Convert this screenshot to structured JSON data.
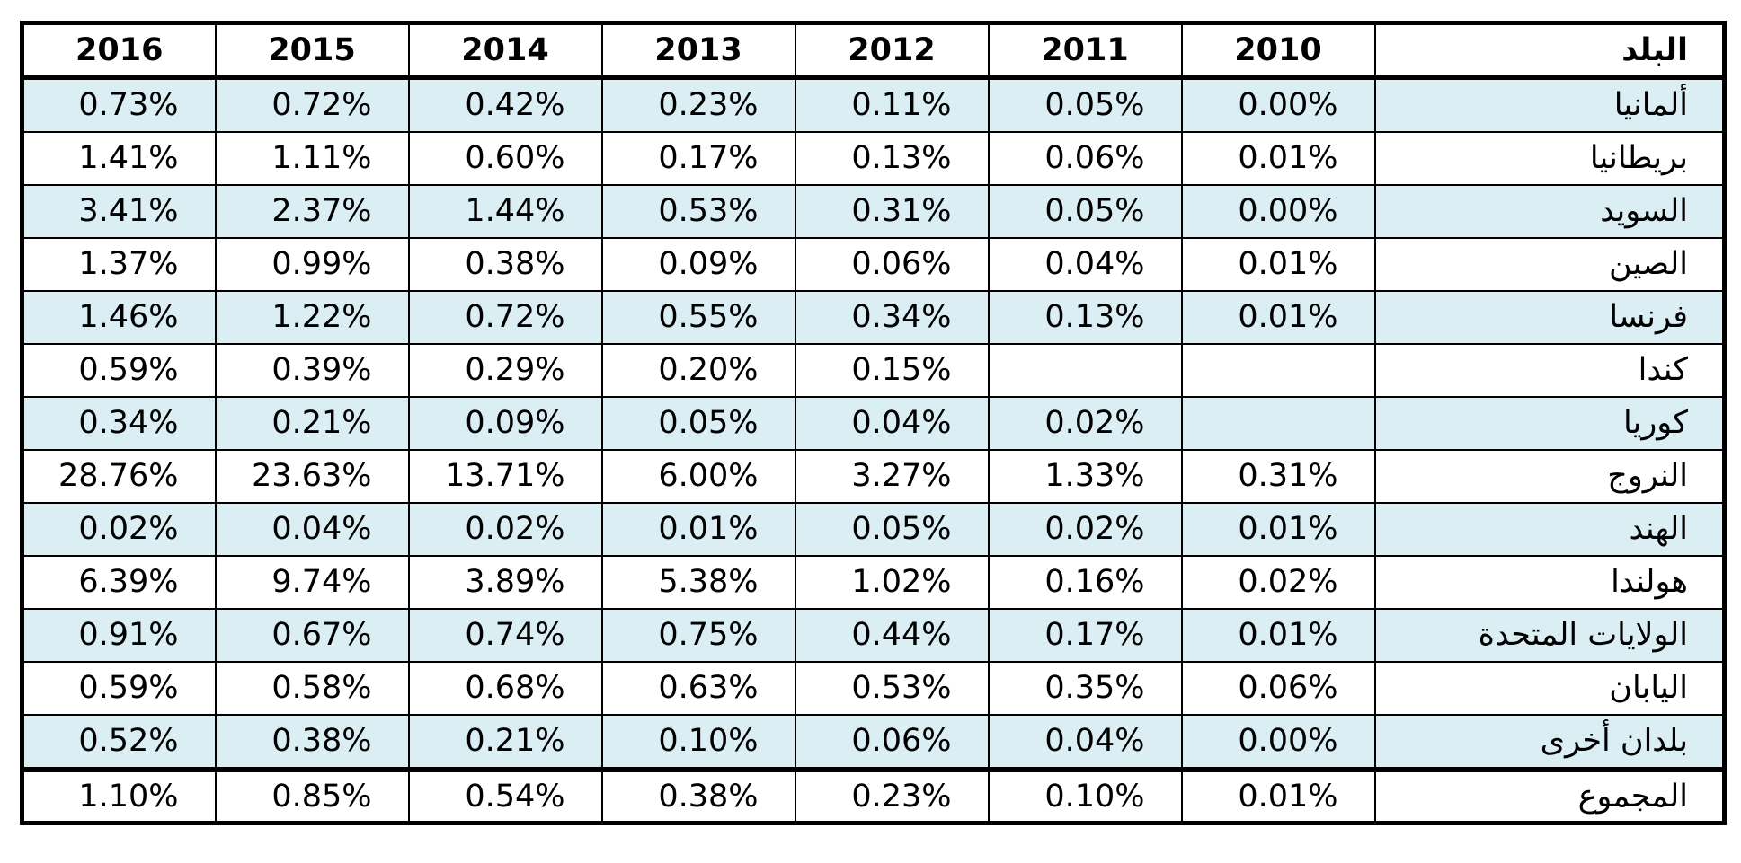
{
  "table": {
    "headers": {
      "years": [
        "2016",
        "2015",
        "2014",
        "2013",
        "2012",
        "2011",
        "2010"
      ],
      "country": "البلد"
    },
    "rows": [
      {
        "country": "ألمانيا",
        "values": [
          "0.73%",
          "0.72%",
          "0.42%",
          "0.23%",
          "0.11%",
          "0.05%",
          "0.00%"
        ]
      },
      {
        "country": "بريطانيا",
        "values": [
          "1.41%",
          "1.11%",
          "0.60%",
          "0.17%",
          "0.13%",
          "0.06%",
          "0.01%"
        ]
      },
      {
        "country": "السويد",
        "values": [
          "3.41%",
          "2.37%",
          "1.44%",
          "0.53%",
          "0.31%",
          "0.05%",
          "0.00%"
        ]
      },
      {
        "country": "الصين",
        "values": [
          "1.37%",
          "0.99%",
          "0.38%",
          "0.09%",
          "0.06%",
          "0.04%",
          "0.01%"
        ]
      },
      {
        "country": "فرنسا",
        "values": [
          "1.46%",
          "1.22%",
          "0.72%",
          "0.55%",
          "0.34%",
          "0.13%",
          "0.01%"
        ]
      },
      {
        "country": "كندا",
        "values": [
          "0.59%",
          "0.39%",
          "0.29%",
          "0.20%",
          "0.15%",
          "",
          ""
        ]
      },
      {
        "country": "كوريا",
        "values": [
          "0.34%",
          "0.21%",
          "0.09%",
          "0.05%",
          "0.04%",
          "0.02%",
          ""
        ]
      },
      {
        "country": "النروج",
        "values": [
          "28.76%",
          "23.63%",
          "13.71%",
          "6.00%",
          "3.27%",
          "1.33%",
          "0.31%"
        ]
      },
      {
        "country": "الهند",
        "values": [
          "0.02%",
          "0.04%",
          "0.02%",
          "0.01%",
          "0.05%",
          "0.02%",
          "0.01%"
        ]
      },
      {
        "country": "هولندا",
        "values": [
          "6.39%",
          "9.74%",
          "3.89%",
          "5.38%",
          "1.02%",
          "0.16%",
          "0.02%"
        ]
      },
      {
        "country": "الولايات المتحدة",
        "values": [
          "0.91%",
          "0.67%",
          "0.74%",
          "0.75%",
          "0.44%",
          "0.17%",
          "0.01%"
        ]
      },
      {
        "country": "اليابان",
        "values": [
          "0.59%",
          "0.58%",
          "0.68%",
          "0.63%",
          "0.53%",
          "0.35%",
          "0.06%"
        ]
      },
      {
        "country": "بلدان أخرى",
        "values": [
          "0.52%",
          "0.38%",
          "0.21%",
          "0.10%",
          "0.06%",
          "0.04%",
          "0.00%"
        ]
      }
    ],
    "total": {
      "country": "المجموع",
      "values": [
        "1.10%",
        "0.85%",
        "0.54%",
        "0.38%",
        "0.23%",
        "0.10%",
        "0.01%"
      ]
    }
  },
  "colors": {
    "row_shade": "#daeef3",
    "border": "#000000",
    "background": "#ffffff"
  }
}
